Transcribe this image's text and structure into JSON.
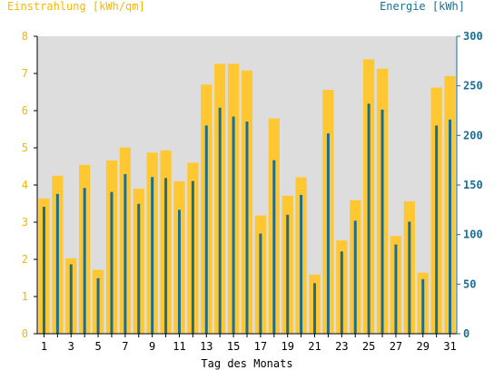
{
  "chart_data": {
    "type": "bar",
    "left_axis_title": "Einstrahlung [kWh/qm]",
    "right_axis_title": "Energie [kWh]",
    "xlabel": "Tag des Monats",
    "x_ticks": [
      "1",
      "3",
      "5",
      "7",
      "9",
      "11",
      "13",
      "15",
      "17",
      "19",
      "21",
      "23",
      "25",
      "27",
      "29",
      "31"
    ],
    "left_ticks": [
      "0",
      "1",
      "2",
      "3",
      "4",
      "5",
      "6",
      "7",
      "8"
    ],
    "right_ticks": [
      "0",
      "50",
      "100",
      "150",
      "200",
      "250",
      "300"
    ],
    "left_ylim": [
      0,
      8
    ],
    "right_ylim": [
      0,
      300
    ],
    "grid": false,
    "legend": "none",
    "plot_background": "#dddddd",
    "left_axis_color": "#f5b800",
    "right_axis_color": "#1a6e94",
    "categories": [
      1,
      2,
      3,
      4,
      5,
      6,
      7,
      8,
      9,
      10,
      11,
      12,
      13,
      14,
      15,
      16,
      17,
      18,
      19,
      20,
      21,
      22,
      23,
      24,
      25,
      26,
      27,
      28,
      29,
      30,
      31
    ],
    "series": [
      {
        "axis": "left",
        "color": "#ffc832",
        "values": [
          3.64,
          4.25,
          2.03,
          4.54,
          1.72,
          4.66,
          5.01,
          3.9,
          4.87,
          4.93,
          4.1,
          4.6,
          6.7,
          7.26,
          7.26,
          7.08,
          3.18,
          5.79,
          3.71,
          4.21,
          1.59,
          6.56,
          2.51,
          3.59,
          7.38,
          7.13,
          2.63,
          3.56,
          1.64,
          6.62,
          6.93
        ]
      },
      {
        "axis": "right",
        "color": "#1a6e94",
        "values": [
          128,
          141,
          70,
          147,
          56,
          143,
          161,
          131,
          158,
          157,
          125,
          154,
          210,
          228,
          219,
          214,
          101,
          175,
          120,
          140,
          51,
          202,
          83,
          114,
          232,
          226,
          90,
          113,
          55,
          210,
          216
        ]
      }
    ]
  }
}
